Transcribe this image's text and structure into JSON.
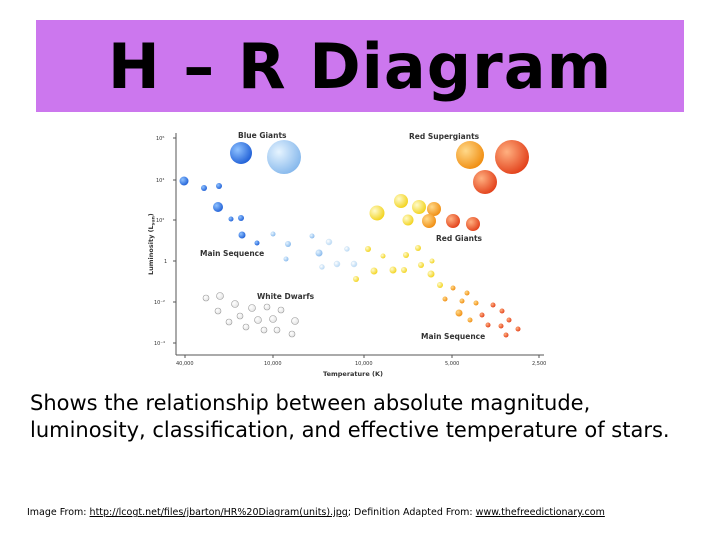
{
  "title": "H – R Diagram",
  "diagram": {
    "y_axis_label": "Luminosity (L",
    "y_axis_label_sub": "sun",
    "y_axis_label_close": ")",
    "x_axis_label": "Temperature (K)",
    "y_ticks": [
      "10⁶",
      "10⁴",
      "10²",
      "1",
      "10⁻²",
      "10⁻⁴"
    ],
    "x_ticks": [
      "40,000",
      "10,000",
      "10,000",
      "5,000",
      "2,500"
    ],
    "region_labels": {
      "blue_giants": "Blue Giants",
      "red_supergiants": "Red Supergiants",
      "red_giants": "Red Giants",
      "main_sequence_upper": "Main Sequence",
      "white_dwarfs": "White Dwarfs",
      "main_sequence_lower": "Main Sequence"
    },
    "colors": {
      "blue": "#2d6fe0",
      "light_blue": "#9ccaf2",
      "yellow": "#ffe54d",
      "orange": "#f7a21b",
      "red_orange": "#ee5a24",
      "white_dwarf_outline": "#999999"
    }
  },
  "caption": "Shows the relationship between absolute magnitude, luminosity, classification, and effective temperature of stars.",
  "credits": {
    "prefix": "Image From:",
    "image_link": "http://lcogt.net/files/jbarton/HR%20Diagram(units).jpg",
    "middle": "; Definition Adapted From:",
    "def_link": "www.thefreedictionary.com"
  }
}
